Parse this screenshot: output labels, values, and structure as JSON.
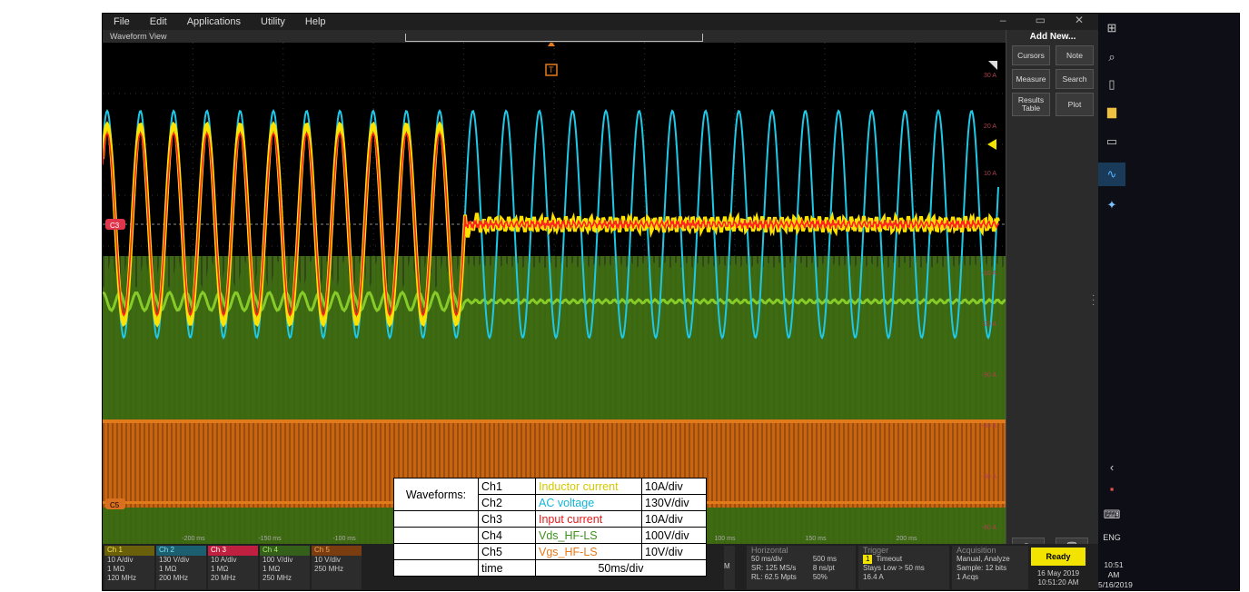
{
  "menu": [
    "File",
    "Edit",
    "Applications",
    "Utility",
    "Help"
  ],
  "waveform_view_title": "Waveform View",
  "trigger_marker": "T",
  "y_labels": [
    "30 A",
    "20 A",
    "10 A",
    "-10 A",
    "-20 A",
    "-30 A",
    "-40 A",
    "-50 A",
    "-60 A"
  ],
  "time_labels": [
    "-200 ms",
    "-150 ms",
    "-100 ms",
    "100 ms",
    "150 ms",
    "200 ms"
  ],
  "channel_markers": [
    "C3",
    "C5"
  ],
  "right_panel": {
    "title": "Add New...",
    "buttons": [
      "Cursors",
      "Note",
      "Measure",
      "Search",
      "Results Table",
      "Plot"
    ]
  },
  "channels": [
    {
      "name": "Ch 1",
      "lines": [
        "10 A/div",
        "1 MΩ",
        "120 MHz"
      ],
      "color": "#b8a600"
    },
    {
      "name": "Ch 2",
      "lines": [
        "130 V/div",
        "1 MΩ",
        "200 MHz"
      ],
      "color": "#2fa3c0"
    },
    {
      "name": "Ch 3",
      "lines": [
        "10 A/div",
        "1 MΩ",
        "20 MHz"
      ],
      "color": "#e0354a"
    },
    {
      "name": "Ch 4",
      "lines": [
        "100 V/div",
        "1 MΩ",
        "250 MHz"
      ],
      "color": "#5fa82c"
    },
    {
      "name": "Ch 5",
      "lines": [
        "10 V/div",
        "",
        "250 MHz"
      ],
      "color": "#d87020"
    }
  ],
  "horizontal": {
    "title": "Horizontal",
    "col1": [
      "50 ms/div",
      "SR: 125 MS/s",
      "RL: 62.5 Mpts"
    ],
    "col2": [
      "500 ms",
      "8 ns/pt",
      "50%"
    ]
  },
  "trigger": {
    "title": "Trigger",
    "lines": [
      "Timeout",
      "Stays Low > 50 ms",
      "16.4 A"
    ],
    "ch": "1"
  },
  "acquisition": {
    "title": "Acquisition",
    "lines": [
      "Manual,    Analyze",
      "Sample: 12 bits",
      "1 Acqs"
    ]
  },
  "status": {
    "ready": "Ready",
    "date": "16 May 2019",
    "time": "10:51:20 AM"
  },
  "taskbar": {
    "lang": "ENG",
    "time": "10:51 AM",
    "date": "5/16/2019"
  },
  "legend": {
    "title": "Waveforms:",
    "rows": [
      {
        "ch": "Ch1",
        "name": "Inductor current",
        "scale": "10A/div"
      },
      {
        "ch": "Ch2",
        "name": "AC voltage",
        "scale": "130V/div"
      },
      {
        "ch": "Ch3",
        "name": "Input current",
        "scale": "10A/div"
      },
      {
        "ch": "Ch4",
        "name": "Vds_HF-LS",
        "scale": "100V/div"
      },
      {
        "ch": "Ch5",
        "name": "Vgs_HF-LS",
        "scale": "10V/div"
      }
    ],
    "time_label": "time",
    "time_value": "50ms/div"
  },
  "colors": {
    "ch1": "#ffe100",
    "ch2": "#1ec8e6",
    "ch3": "#ff2020",
    "ch4": "#4a7a18",
    "ch5": "#d2680e"
  }
}
